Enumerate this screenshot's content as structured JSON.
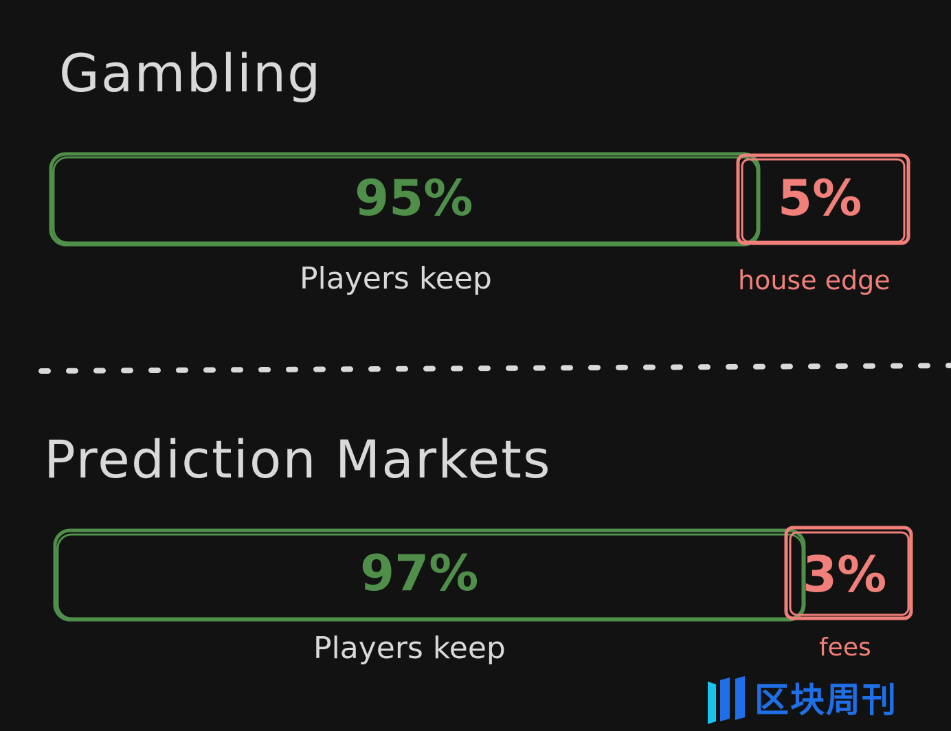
{
  "colors": {
    "background": "#121212",
    "keep": "#4f8f4a",
    "edge": "#f08079",
    "text": "#d9d9d9",
    "watermark": "#1f6fe8"
  },
  "sections": [
    {
      "title": "Gambling",
      "keep_percent": "95%",
      "edge_percent": "5%",
      "keep_label": "Players keep",
      "edge_label": "house edge",
      "keep_value": 95,
      "edge_value": 5
    },
    {
      "title": "Prediction Markets",
      "keep_percent": "97%",
      "edge_percent": "3%",
      "keep_label": "Players keep",
      "edge_label": "fees",
      "keep_value": 97,
      "edge_value": 3
    }
  ],
  "watermark": {
    "text": "区块周刊",
    "icon": "block-weekly-logo-icon"
  }
}
